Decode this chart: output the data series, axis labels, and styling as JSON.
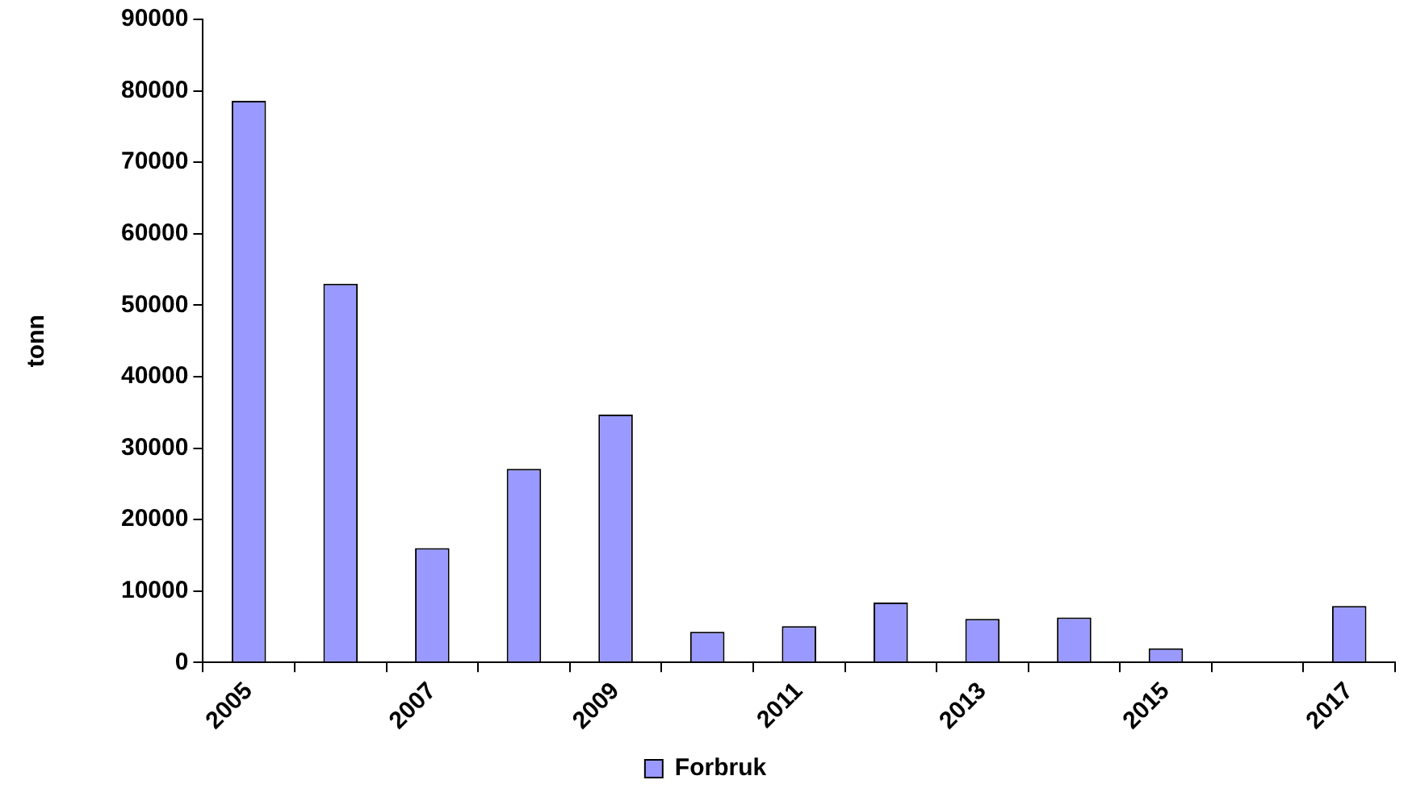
{
  "chart_data": {
    "type": "bar",
    "ylabel": "tonn",
    "categories": [
      "2005",
      null,
      "2007",
      null,
      "2009",
      null,
      "2011",
      null,
      "2013",
      null,
      "2015",
      null,
      "2017"
    ],
    "series": [
      {
        "name": "Forbruk",
        "color": "#9999ff",
        "values": [
          78600,
          53000,
          16000,
          27100,
          34700,
          4300,
          5100,
          8400,
          6100,
          6300,
          2000,
          null,
          7900
        ]
      }
    ],
    "ylim": [
      0,
      90000
    ],
    "yticks": [
      0,
      10000,
      20000,
      30000,
      40000,
      50000,
      60000,
      70000,
      80000,
      90000
    ],
    "grid": false,
    "legend": "bottom"
  }
}
